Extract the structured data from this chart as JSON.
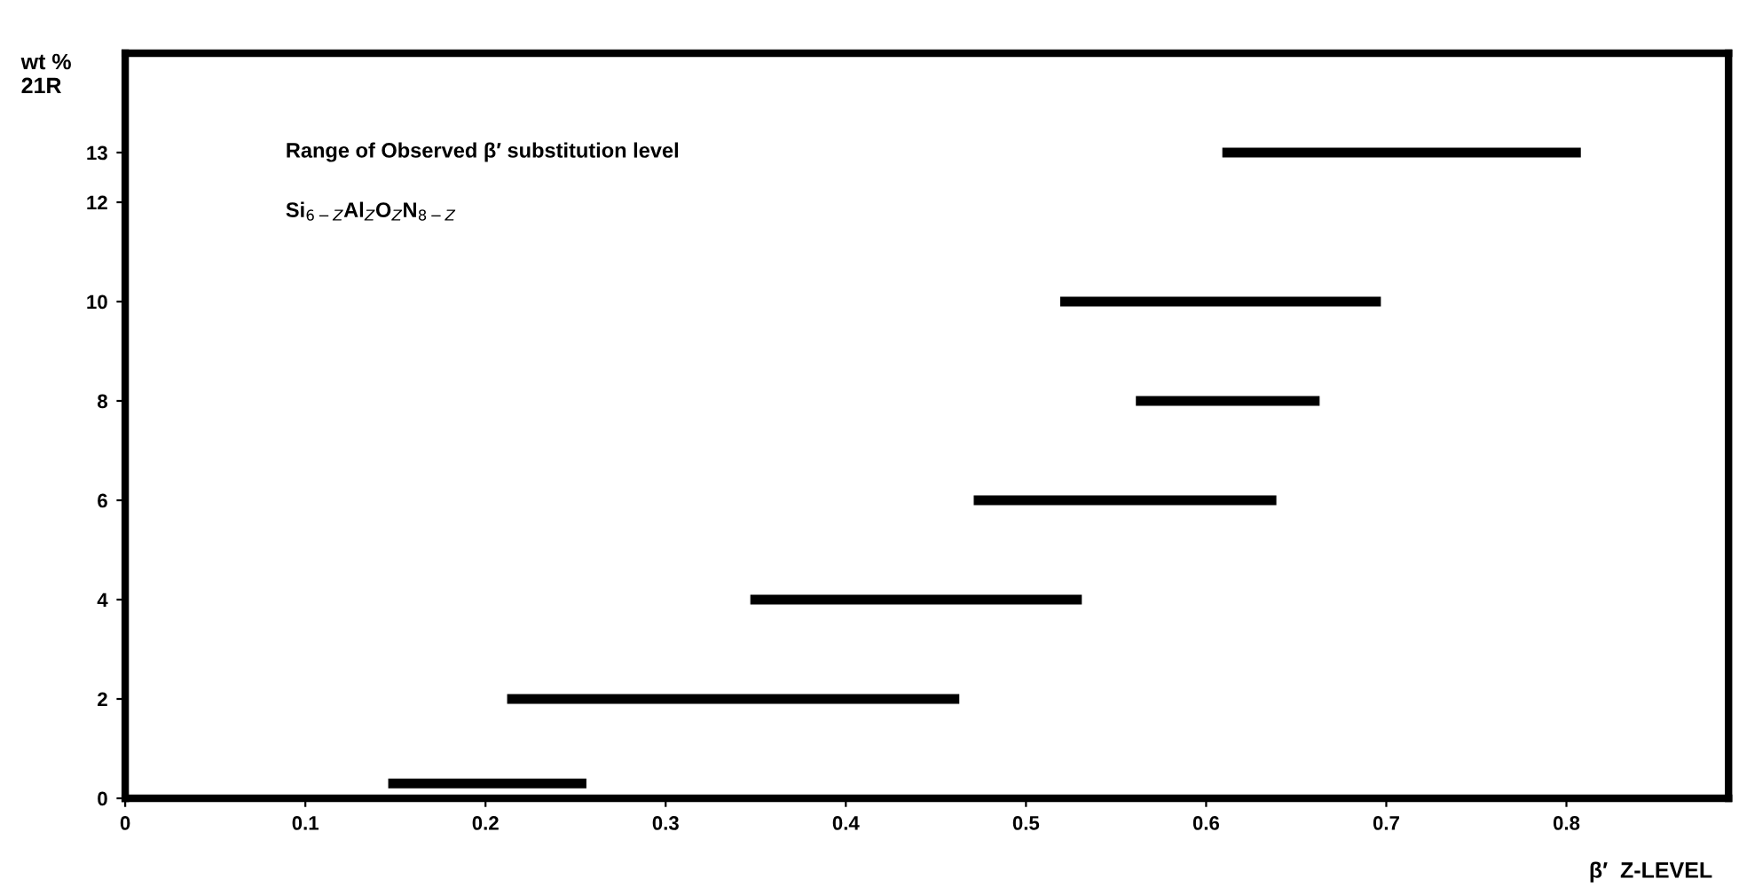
{
  "chart_data": {
    "type": "line",
    "xlabel": "β′  Z-LEVEL",
    "ylabel": "wt %\n21R",
    "annotations": [
      "Range of Observed β′ substitution level",
      "Si$_{6−Z}$Al$_{Z}$O$_{Z}$N$_{8−Z}$"
    ],
    "series": [
      {
        "x": [
          0.146,
          0.256
        ],
        "values": [
          0.3,
          0.3
        ],
        "color": "#000000"
      },
      {
        "x": [
          0.212,
          0.463
        ],
        "values": [
          2,
          2
        ],
        "color": "#000000"
      },
      {
        "x": [
          0.347,
          0.531
        ],
        "values": [
          4,
          4
        ],
        "color": "#000000"
      },
      {
        "x": [
          0.471,
          0.639
        ],
        "values": [
          6,
          6
        ],
        "color": "#000000"
      },
      {
        "x": [
          0.561,
          0.663
        ],
        "values": [
          8,
          8
        ],
        "color": "#000000"
      },
      {
        "x": [
          0.519,
          0.697
        ],
        "values": [
          10,
          10
        ],
        "color": "#000000"
      },
      {
        "x": [
          0.609,
          0.808
        ],
        "values": [
          13,
          13
        ],
        "color": "#000000"
      }
    ],
    "xlim": [
      0,
      0.89
    ],
    "ylim": [
      0,
      15
    ],
    "xticks": [
      0,
      0.1,
      0.2,
      0.3,
      0.4,
      0.5,
      0.6,
      0.7,
      0.8
    ],
    "yticks": [
      0,
      2,
      4,
      6,
      8,
      10,
      12,
      13
    ],
    "grid": false,
    "marker": "none",
    "line_style": "solid"
  }
}
